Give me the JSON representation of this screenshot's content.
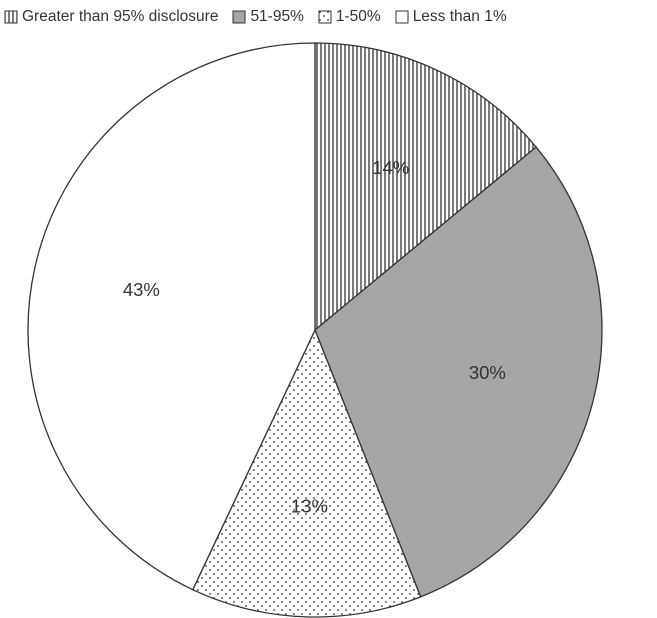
{
  "chart_data": {
    "type": "pie",
    "title": "",
    "start_angle_deg": 0,
    "direction": "clockwise",
    "legend_position": "top",
    "categories": [
      "Greater than 95% disclosure",
      "51-95%",
      "1-50%",
      "Less than 1%"
    ],
    "values": [
      14,
      30,
      13,
      43
    ],
    "labels": [
      "14%",
      "30%",
      "13%",
      "43%"
    ],
    "fills": [
      {
        "pattern": "vertical-stripes",
        "color": "#333333"
      },
      {
        "pattern": "solid",
        "color": "#a6a6a6"
      },
      {
        "pattern": "dots",
        "color": "#333333"
      },
      {
        "pattern": "solid",
        "color": "#ffffff"
      }
    ],
    "outline_color": "#333333"
  }
}
